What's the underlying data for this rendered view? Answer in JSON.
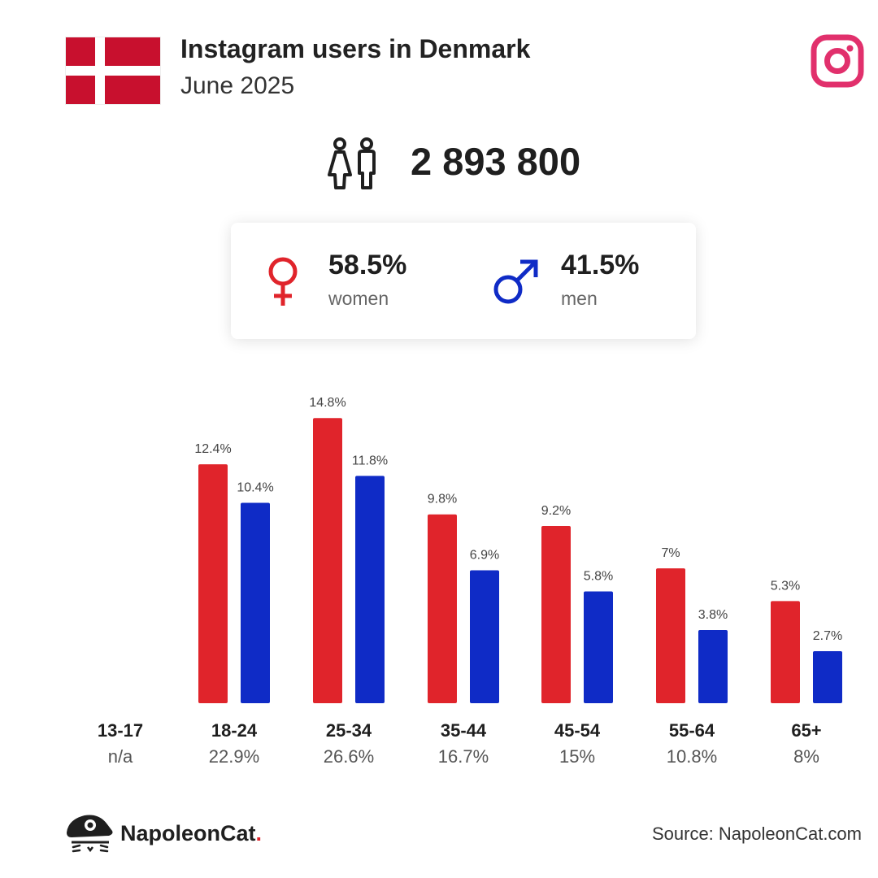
{
  "header": {
    "title": "Instagram users in Denmark",
    "subtitle": "June 2025",
    "flag_icon": "denmark-flag",
    "app_icon": "instagram-icon"
  },
  "total": {
    "value": "2 893 800",
    "icon": "people-icon"
  },
  "gender": {
    "women": {
      "percent": "58.5%",
      "label": "women",
      "icon": "female-symbol-icon",
      "color": "#e0242b"
    },
    "men": {
      "percent": "41.5%",
      "label": "men",
      "icon": "male-symbol-icon",
      "color": "#0f2bc6"
    }
  },
  "chart_data": {
    "type": "bar",
    "categories": [
      "13-17",
      "18-24",
      "25-34",
      "35-44",
      "45-54",
      "55-64",
      "65+"
    ],
    "category_totals": [
      "n/a",
      "22.9%",
      "26.6%",
      "16.7%",
      "15%",
      "10.8%",
      "8%"
    ],
    "series": [
      {
        "name": "women",
        "color": "#e0242b",
        "values": [
          null,
          12.4,
          14.8,
          9.8,
          9.2,
          7,
          5.3
        ],
        "labels": [
          "",
          "12.4%",
          "14.8%",
          "9.8%",
          "9.2%",
          "7%",
          "5.3%"
        ]
      },
      {
        "name": "men",
        "color": "#0f2bc6",
        "values": [
          null,
          10.4,
          11.8,
          6.9,
          5.8,
          3.8,
          2.7
        ],
        "labels": [
          "",
          "10.4%",
          "11.8%",
          "6.9%",
          "5.8%",
          "3.8%",
          "2.7%"
        ]
      }
    ],
    "grid": false,
    "legend": "none"
  },
  "footer": {
    "brand_name": "NapoleonCat",
    "brand_dot": ".",
    "brand_icon": "napoleoncat-logo-icon",
    "source": "Source: NapoleonCat.com"
  }
}
